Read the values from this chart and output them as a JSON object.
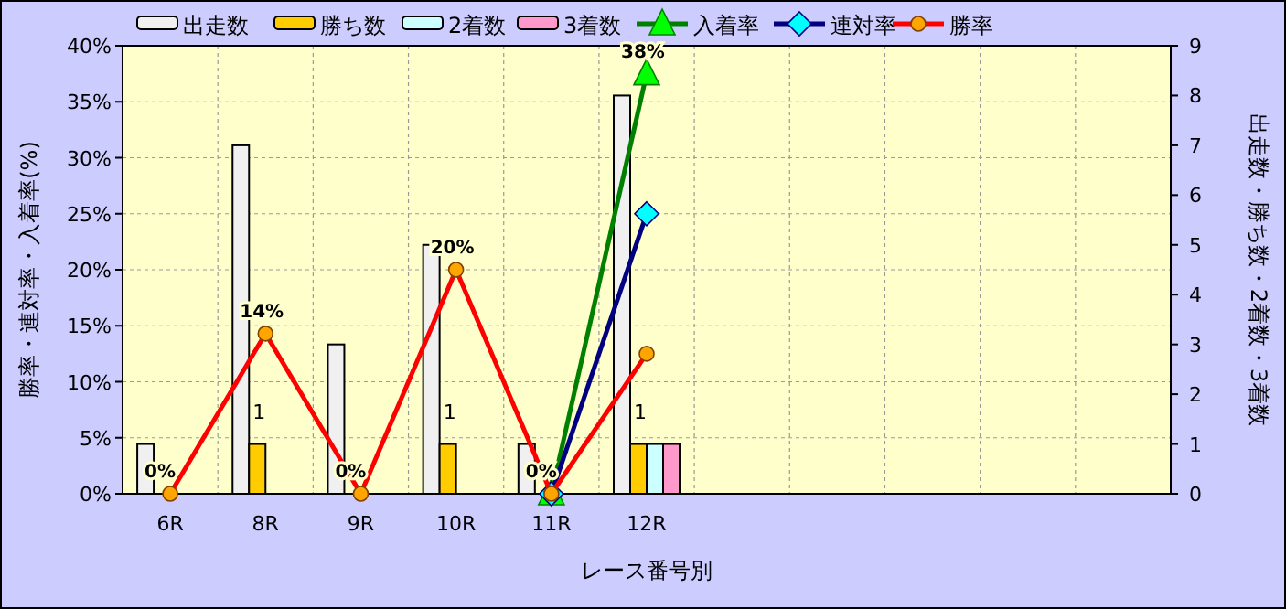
{
  "chart_data": {
    "type": "bar",
    "xlabel": "レース番号別",
    "ylabel": "勝率・連対率・入着率(%)",
    "y2label": "出走数・勝ち数・2着数・3着数",
    "categories": [
      "6R",
      "8R",
      "9R",
      "10R",
      "11R",
      "12R",
      null,
      null,
      null,
      null,
      null
    ],
    "series": [
      {
        "name": "出走数",
        "axis": "y2",
        "color": "#f0f0f0",
        "values": [
          1,
          7,
          3,
          5,
          1,
          8,
          null,
          null,
          null,
          null,
          null
        ]
      },
      {
        "name": "勝ち数",
        "axis": "y2",
        "color": "#ffcc00",
        "values": [
          0,
          1,
          0,
          1,
          0,
          1,
          null,
          null,
          null,
          null,
          null
        ],
        "value_labels": [
          null,
          "1",
          null,
          "1",
          null,
          "1",
          null,
          null,
          null,
          null,
          null
        ]
      },
      {
        "name": "2着数",
        "axis": "y2",
        "color": "#ccffff",
        "values": [
          0,
          0,
          0,
          0,
          0,
          1,
          null,
          null,
          null,
          null,
          null
        ]
      },
      {
        "name": "3着数",
        "axis": "y2",
        "color": "#ff99cc",
        "values": [
          0,
          0,
          0,
          0,
          0,
          1,
          null,
          null,
          null,
          null,
          null
        ]
      },
      {
        "name": "入着率",
        "type": "line",
        "marker": "triangle",
        "color": "#008000",
        "values": [
          null,
          null,
          null,
          null,
          0,
          37.5,
          null,
          null,
          null,
          null,
          null
        ],
        "value_labels": [
          null,
          null,
          null,
          null,
          null,
          "38%",
          null,
          null,
          null,
          null,
          null
        ]
      },
      {
        "name": "連対率",
        "type": "line",
        "marker": "diamond",
        "color": "#000080",
        "values": [
          null,
          null,
          null,
          null,
          0,
          25,
          null,
          null,
          null,
          null,
          null
        ]
      },
      {
        "name": "勝率",
        "type": "line",
        "marker": "circle",
        "color": "#ff0000",
        "values": [
          0,
          14.3,
          0,
          20,
          0,
          12.5,
          null,
          null,
          null,
          null,
          null
        ],
        "value_labels": [
          "0%",
          "14%",
          "0%",
          "20%",
          "0%",
          null,
          null,
          null,
          null,
          null,
          null
        ]
      }
    ],
    "ylim": [
      0,
      40
    ],
    "yticks": [
      {
        "value": 0,
        "label": "0%"
      },
      {
        "value": 5,
        "label": "5%"
      },
      {
        "value": 10,
        "label": "10%"
      },
      {
        "value": 15,
        "label": "15%"
      },
      {
        "value": 20,
        "label": "20%"
      },
      {
        "value": 25,
        "label": "25%"
      },
      {
        "value": 30,
        "label": "30%"
      },
      {
        "value": 35,
        "label": "35%"
      },
      {
        "value": 40,
        "label": "40%"
      }
    ],
    "y2lim": [
      0,
      9
    ],
    "y2ticks": [
      0,
      1,
      2,
      3,
      4,
      5,
      6,
      7,
      8,
      9
    ],
    "grid": true,
    "legend": "top"
  }
}
